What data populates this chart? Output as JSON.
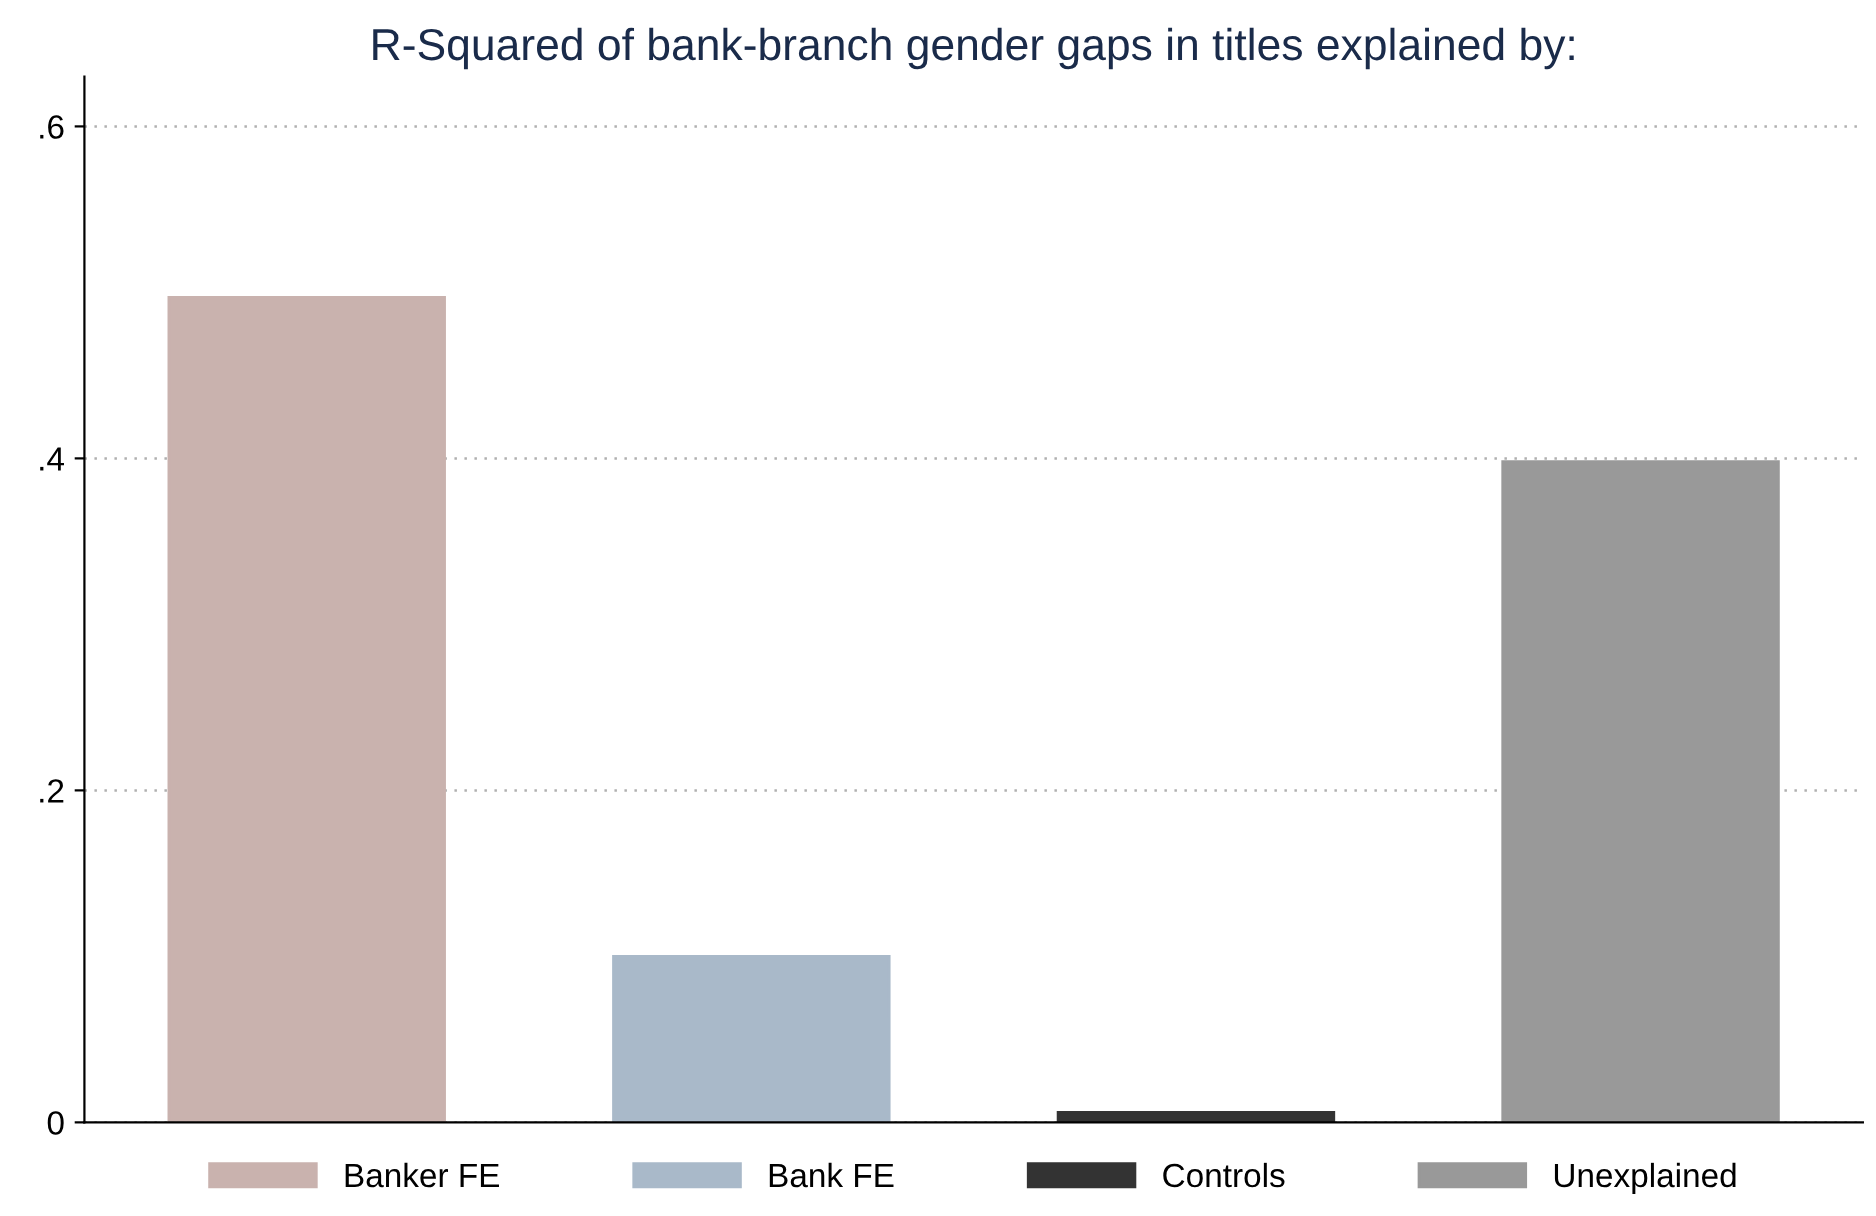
{
  "chart_data": {
    "type": "bar",
    "title": "R-Squared of bank-branch gender gaps in titles explained by:",
    "categories": [
      null,
      null,
      null,
      null
    ],
    "series": [
      {
        "name": "Banker FE",
        "color": "#c9b2ae",
        "values": [
          0.497,
          null,
          null,
          null
        ]
      },
      {
        "name": "Bank FE",
        "color": "#a9b9c9",
        "values": [
          null,
          0.1,
          null,
          null
        ]
      },
      {
        "name": "Controls",
        "color": "#333333",
        "values": [
          null,
          null,
          0.006,
          null
        ]
      },
      {
        "name": "Unexplained",
        "color": "#999999",
        "values": [
          null,
          null,
          null,
          0.398
        ]
      }
    ],
    "ylim": [
      0,
      0.63
    ],
    "yticks": [
      {
        "value": 0,
        "label": "0"
      },
      {
        "value": 0.2,
        "label": ".2"
      },
      {
        "value": 0.4,
        "label": ".4"
      },
      {
        "value": 0.6,
        "label": ".6"
      }
    ],
    "grid": "y",
    "legend": "bottom"
  }
}
